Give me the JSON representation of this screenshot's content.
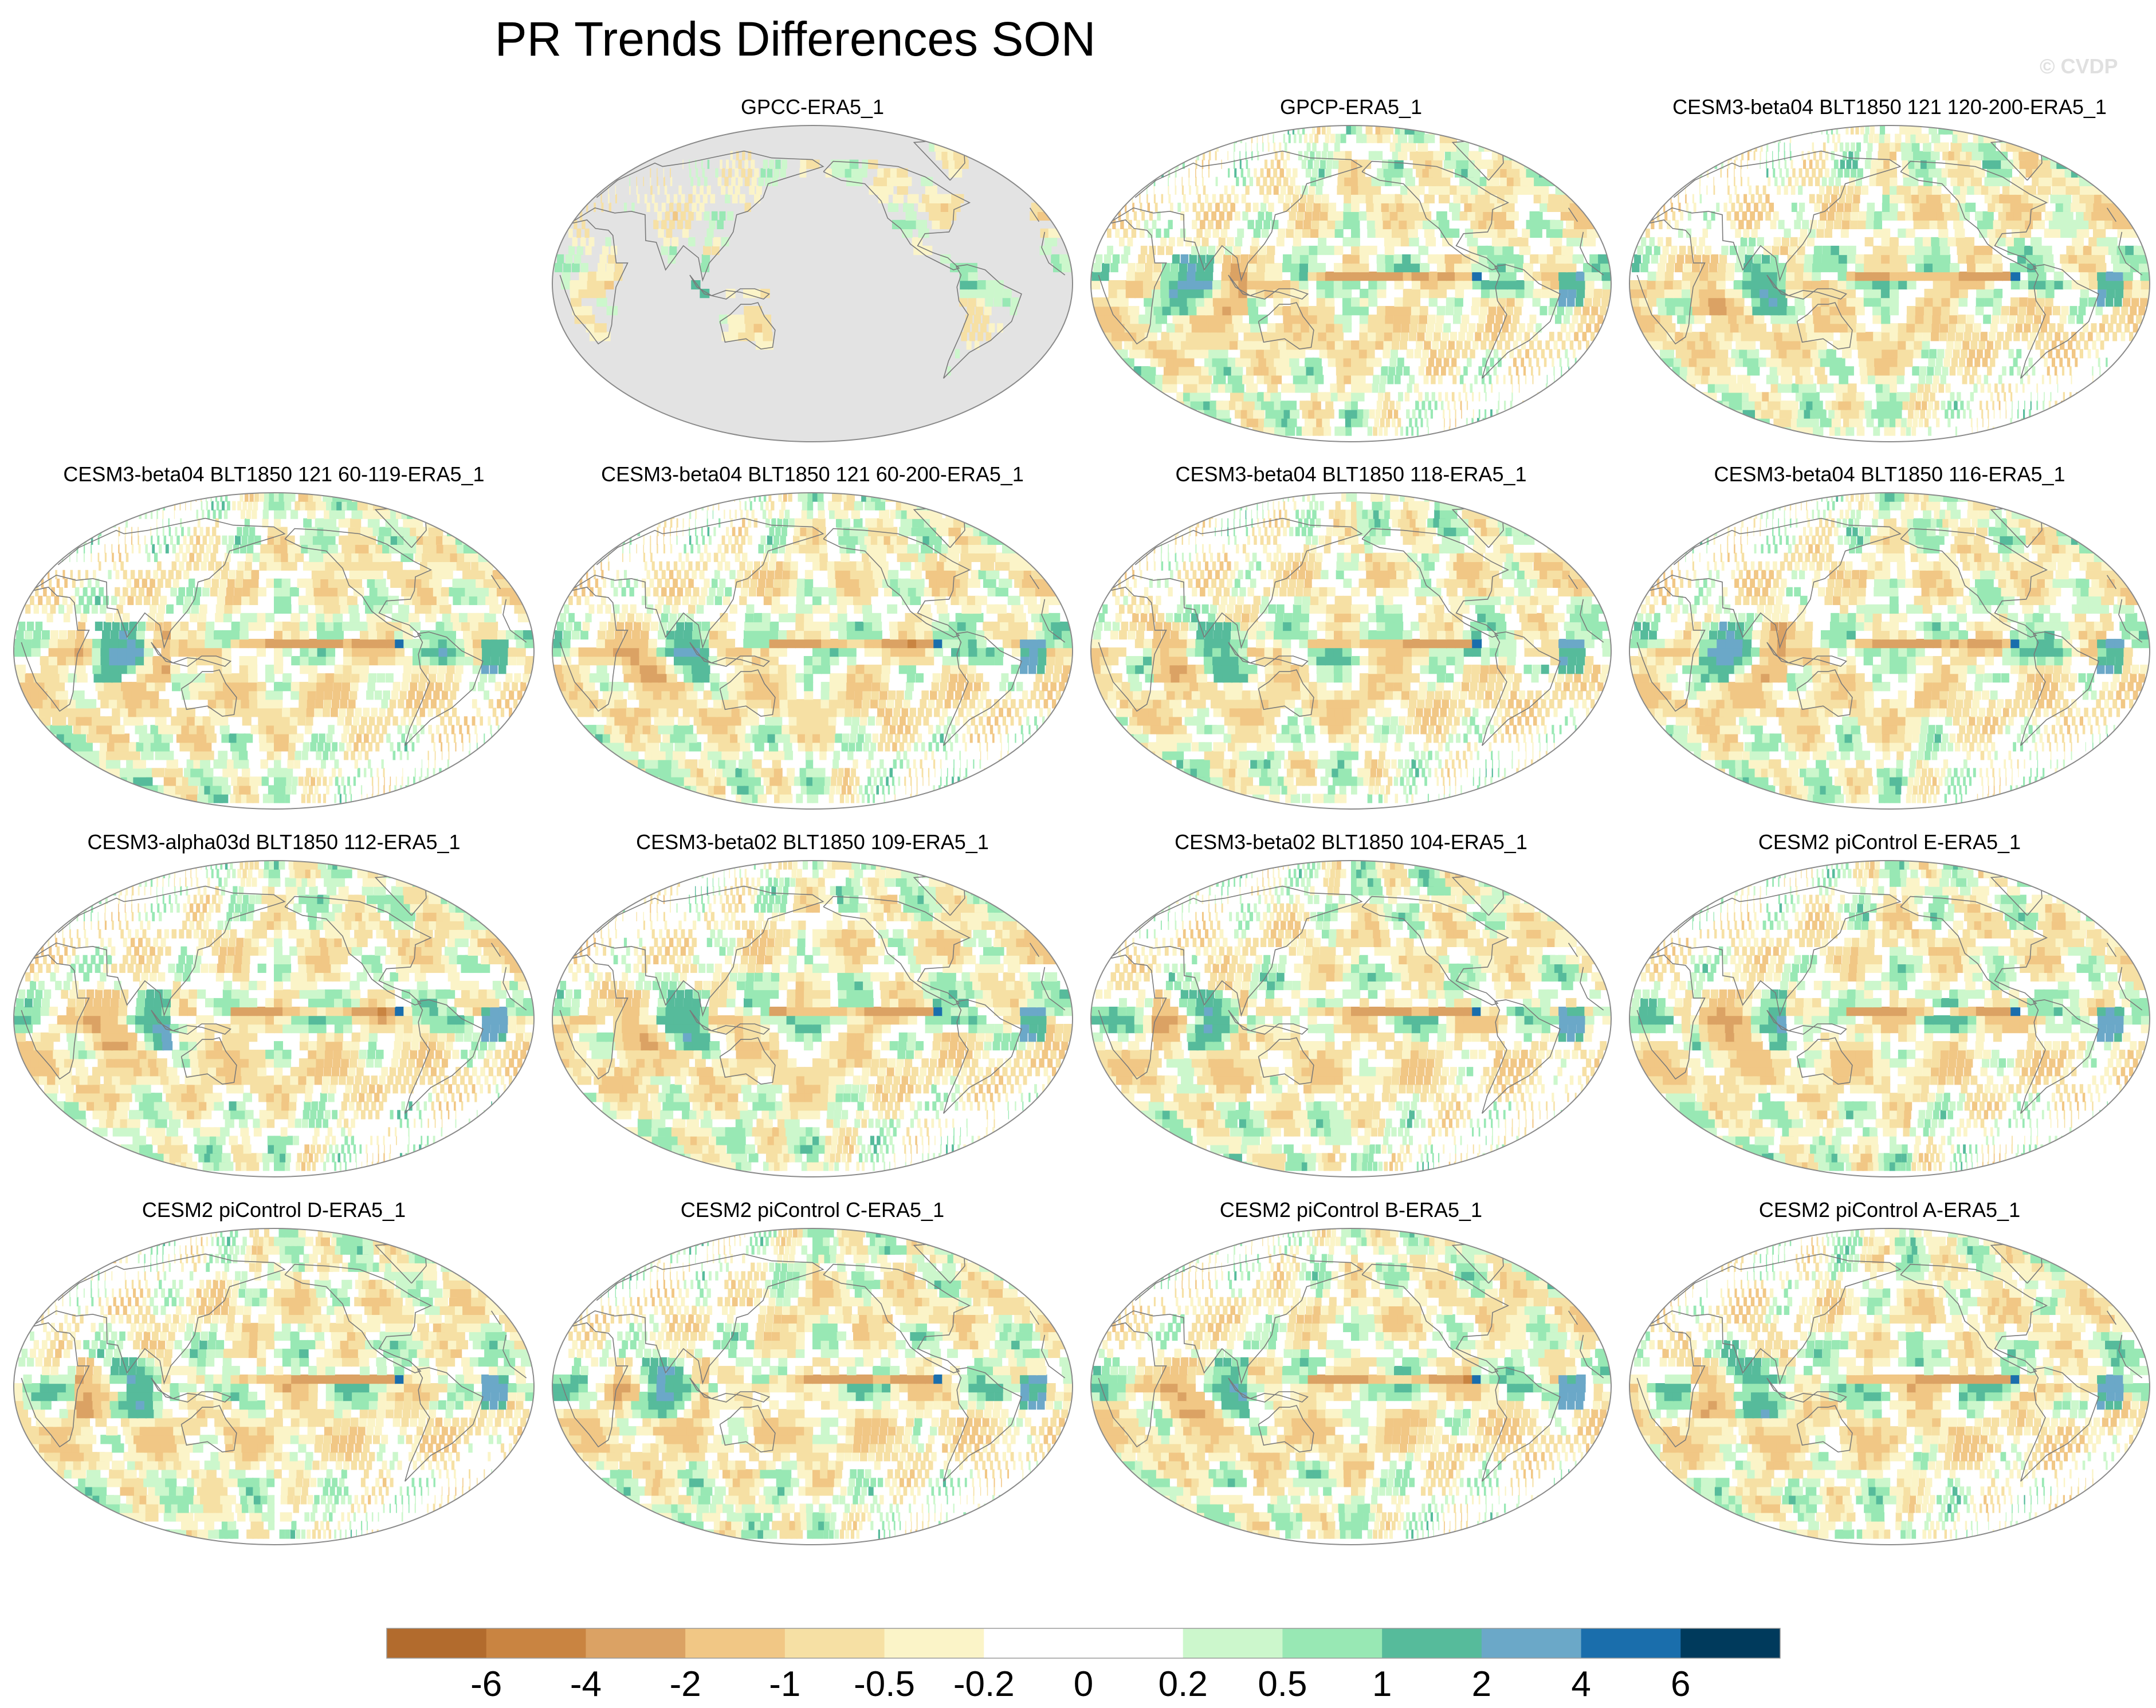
{
  "page": {
    "title": "PR Trends Differences SON",
    "watermark": "© CVDP"
  },
  "colors": {
    "levels": [
      "#b26b2d",
      "#c98441",
      "#dba264",
      "#f1c785",
      "#f6e0a4",
      "#fbf4c8",
      "#ffffff",
      "#ffffff",
      "#ccf7cc",
      "#98e8b4",
      "#56bb9b",
      "#6ba8c8",
      "#1a6eac",
      "#003a5c"
    ],
    "land_mask": "#e3e3e3",
    "coast": "#7a7a7a"
  },
  "chart_data": {
    "type": "heatmap",
    "title": "PR Trends Differences SON",
    "projection": "Robinson, centered on 180°",
    "panels": [
      {
        "name": "GPCC-ERA5_1",
        "land_only": true,
        "seed": 3
      },
      {
        "name": "GPCP-ERA5_1",
        "land_only": false,
        "seed": 11
      },
      {
        "name": "CESM3-beta04 BLT1850 121 120-200-ERA5_1",
        "land_only": false,
        "seed": 17
      },
      {
        "name": "CESM3-beta04 BLT1850 121 60-119-ERA5_1",
        "land_only": false,
        "seed": 23
      },
      {
        "name": "CESM3-beta04 BLT1850 121 60-200-ERA5_1",
        "land_only": false,
        "seed": 29
      },
      {
        "name": "CESM3-beta04 BLT1850 118-ERA5_1",
        "land_only": false,
        "seed": 31
      },
      {
        "name": "CESM3-beta04 BLT1850 116-ERA5_1",
        "land_only": false,
        "seed": 37
      },
      {
        "name": "CESM3-alpha03d BLT1850 112-ERA5_1",
        "land_only": false,
        "seed": 41
      },
      {
        "name": "CESM3-beta02 BLT1850 109-ERA5_1",
        "land_only": false,
        "seed": 43
      },
      {
        "name": "CESM3-beta02 BLT1850 104-ERA5_1",
        "land_only": false,
        "seed": 47
      },
      {
        "name": "CESM2 piControl E-ERA5_1",
        "land_only": false,
        "seed": 53
      },
      {
        "name": "CESM2 piControl D-ERA5_1",
        "land_only": false,
        "seed": 59
      },
      {
        "name": "CESM2 piControl C-ERA5_1",
        "land_only": false,
        "seed": 61
      },
      {
        "name": "CESM2 piControl B-ERA5_1",
        "land_only": false,
        "seed": 67
      },
      {
        "name": "CESM2 piControl A-ERA5_1",
        "land_only": false,
        "seed": 71
      }
    ],
    "colorbar": {
      "tick_labels": [
        "-6",
        "-4",
        "-2",
        "-1",
        "-0.5",
        "-0.2",
        "0",
        "0.2",
        "0.5",
        "1",
        "2",
        "4",
        "6"
      ],
      "tick_values": [
        -6,
        -4,
        -2,
        -1,
        -0.5,
        -0.2,
        0,
        0.2,
        0.5,
        1,
        2,
        4,
        6
      ]
    }
  }
}
